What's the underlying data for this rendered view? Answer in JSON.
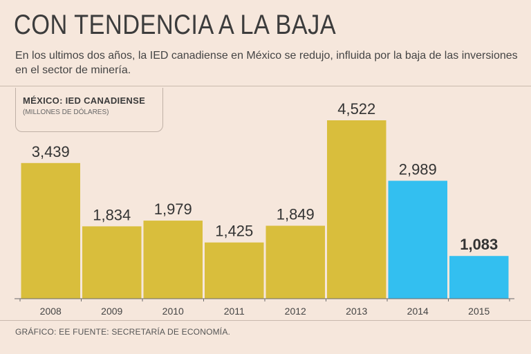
{
  "title": "CON TENDENCIA A LA BAJA",
  "subtitle": "En los ultimos dos años, la IED canadiense en México se redujo, influida por la baja de las inversiones en el sector de minería.",
  "source": "GRÁFICO: EE  FUENTE: SECRETARÍA DE ECONOMÍA.",
  "chart_data": {
    "type": "bar",
    "title": "MÉXICO: IED CANADIENSE",
    "subtitle": "(MILLONES DE DÓLARES)",
    "categories": [
      "2008",
      "2009",
      "2010",
      "2011",
      "2012",
      "2013",
      "2014",
      "2015"
    ],
    "values": [
      3439,
      1834,
      1979,
      1425,
      1849,
      4522,
      2989,
      1083
    ],
    "labels": [
      "3,439",
      "1,834",
      "1,979",
      "1,425",
      "1,849",
      "4,522",
      "2,989",
      "1,083"
    ],
    "highlight_last_label": true,
    "ylim": [
      0,
      4522
    ],
    "grid": false,
    "colors": {
      "primary": "#d9be3c",
      "recent": "#33bff0",
      "axis": "#6a6a6a"
    },
    "recent_from_index": 6
  }
}
